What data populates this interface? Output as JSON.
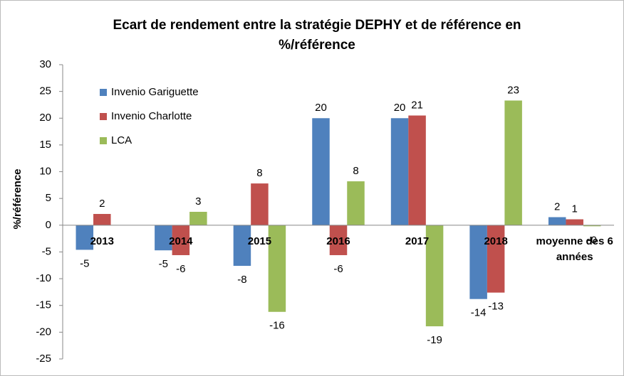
{
  "chart_data": {
    "type": "bar",
    "title": "Ecart de rendement entre la stratégie DEPHY et de référence en %/référence",
    "ylabel": "%/référence",
    "categories": [
      "2013",
      "2014",
      "2015",
      "2016",
      "2017",
      "2018",
      "moyenne des 6 années"
    ],
    "series": [
      {
        "name": "Invenio Gariguette",
        "color": "#4f81bd",
        "values": [
          -4.6,
          -4.7,
          -7.6,
          20,
          20,
          -13.8,
          1.5
        ],
        "value_labels": [
          "-5",
          "-5",
          "-8",
          "20",
          "20",
          "-14",
          "2"
        ]
      },
      {
        "name": "Invenio Charlotte",
        "color": "#c0504d",
        "values": [
          2.1,
          -5.6,
          7.8,
          -5.6,
          20.5,
          -12.6,
          1.1
        ],
        "value_labels": [
          "2",
          "-6",
          "8",
          "-6",
          "21",
          "-13",
          "1"
        ]
      },
      {
        "name": "LCA",
        "color": "#9bbb59",
        "values": [
          null,
          2.5,
          -16.2,
          8.2,
          -18.9,
          23.3,
          -0.2
        ],
        "value_labels": [
          null,
          "3",
          "-16",
          "8",
          "-19",
          "23",
          "-0"
        ]
      }
    ],
    "ylim": [
      -25,
      30
    ],
    "yticks": [
      -25,
      -20,
      -15,
      -10,
      -5,
      0,
      5,
      10,
      15,
      20,
      25,
      30
    ],
    "grid": false,
    "legend": "upper left"
  }
}
